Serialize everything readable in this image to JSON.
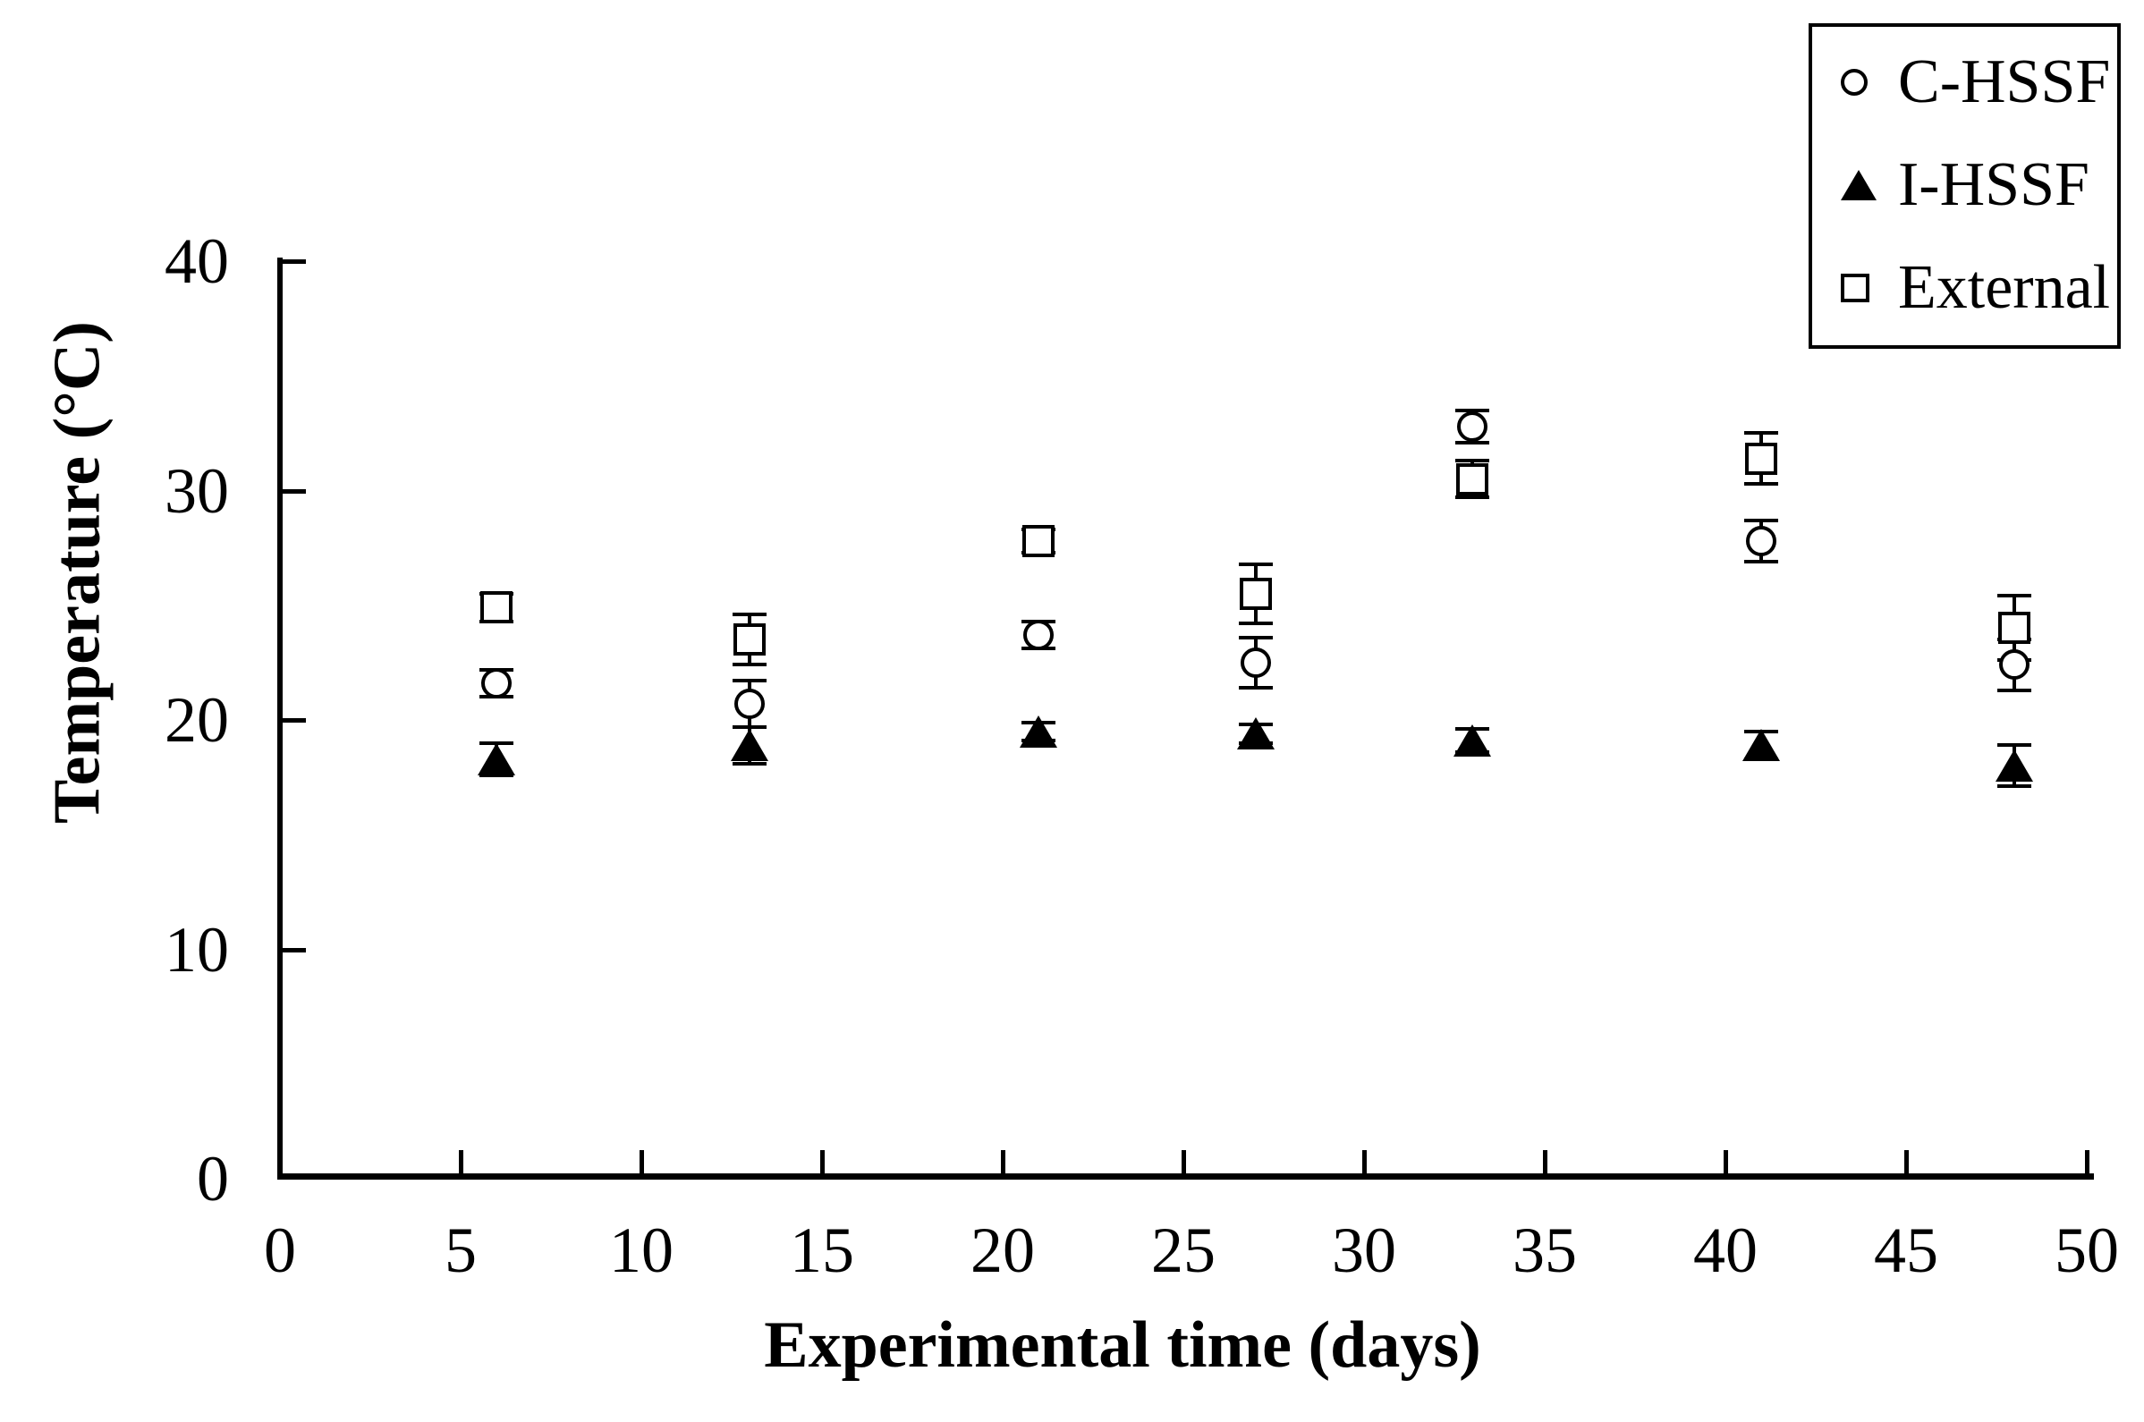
{
  "figure": {
    "background_color": "#ffffff",
    "ink_color": "#000000"
  },
  "chart_data": {
    "type": "scatter",
    "title": "",
    "xlabel": "Experimental time (days)",
    "ylabel": "Temperature (°C)",
    "xlim": [
      0,
      50
    ],
    "ylim": [
      0,
      40
    ],
    "x_ticks": [
      0,
      5,
      10,
      15,
      20,
      25,
      30,
      35,
      40,
      45,
      50
    ],
    "y_ticks": [
      0,
      10,
      20,
      30,
      40
    ],
    "grid": false,
    "legend_position": "top-right",
    "error_bars": true,
    "x": [
      6,
      13,
      21,
      27,
      33,
      41,
      48
    ],
    "series": [
      {
        "name": "C-HSSF",
        "marker": "circle-open",
        "values": [
          21.6,
          20.7,
          23.7,
          22.5,
          32.8,
          27.8,
          22.4
        ],
        "errors": [
          0.6,
          1.0,
          0.6,
          1.1,
          0.7,
          0.9,
          1.1
        ]
      },
      {
        "name": "I-HSSF",
        "marker": "triangle-filled",
        "values": [
          18.3,
          18.9,
          19.5,
          19.4,
          19.1,
          18.9,
          18.0
        ],
        "errors": [
          0.7,
          0.8,
          0.4,
          0.4,
          0.5,
          0.6,
          0.9
        ]
      },
      {
        "name": "External",
        "marker": "square-open",
        "values": [
          24.9,
          23.5,
          27.8,
          25.5,
          30.5,
          31.4,
          24.0
        ],
        "errors": [
          0.6,
          1.1,
          0.5,
          1.3,
          0.8,
          1.1,
          1.4
        ]
      }
    ]
  }
}
